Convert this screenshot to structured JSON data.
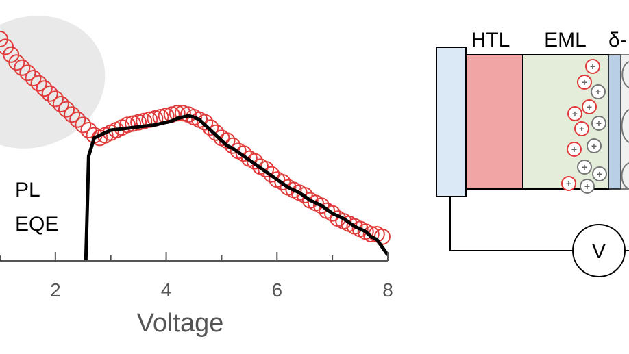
{
  "chart_data": {
    "type": "line",
    "xlabel": "Voltage",
    "ylabel": "",
    "xlim": [
      1.0,
      8.0
    ],
    "xticks": [
      2,
      4,
      6,
      8
    ],
    "ylim": [
      0,
      1
    ],
    "grid": false,
    "legend_labels": [
      "PL",
      "EQE"
    ],
    "series": [
      {
        "name": "PL",
        "marker": "open-circle",
        "color": "#e03a3a",
        "x": [
          1.0,
          1.1,
          1.2,
          1.3,
          1.4,
          1.5,
          1.6,
          1.7,
          1.8,
          1.9,
          2.0,
          2.1,
          2.2,
          2.3,
          2.4,
          2.5,
          2.6,
          2.7,
          2.8,
          2.9,
          3.0,
          3.1,
          3.2,
          3.3,
          3.4,
          3.5,
          3.6,
          3.7,
          3.8,
          3.9,
          4.0,
          4.1,
          4.2,
          4.3,
          4.4,
          4.5,
          4.6,
          4.7,
          4.8,
          4.9,
          5.0,
          5.1,
          5.2,
          5.3,
          5.4,
          5.5,
          5.6,
          5.7,
          5.8,
          5.9,
          6.0,
          6.1,
          6.2,
          6.3,
          6.4,
          6.5,
          6.6,
          6.7,
          6.8,
          6.9,
          7.0,
          7.1,
          7.2,
          7.3,
          7.4,
          7.5,
          7.6,
          7.7,
          7.8,
          7.9
        ],
        "y": [
          0.85,
          0.82,
          0.79,
          0.76,
          0.74,
          0.72,
          0.7,
          0.68,
          0.66,
          0.64,
          0.62,
          0.6,
          0.58,
          0.56,
          0.54,
          0.52,
          0.5,
          0.48,
          0.47,
          0.48,
          0.49,
          0.5,
          0.51,
          0.52,
          0.525,
          0.53,
          0.535,
          0.54,
          0.545,
          0.55,
          0.555,
          0.56,
          0.565,
          0.565,
          0.56,
          0.55,
          0.54,
          0.53,
          0.51,
          0.49,
          0.47,
          0.46,
          0.44,
          0.42,
          0.41,
          0.39,
          0.38,
          0.36,
          0.35,
          0.33,
          0.31,
          0.3,
          0.28,
          0.27,
          0.26,
          0.25,
          0.23,
          0.22,
          0.21,
          0.19,
          0.18,
          0.16,
          0.15,
          0.14,
          0.13,
          0.12,
          0.11,
          0.1,
          0.1,
          0.09
        ]
      },
      {
        "name": "EQE",
        "marker": "line",
        "color": "#000000",
        "x": [
          2.55,
          2.6,
          2.7,
          2.8,
          2.9,
          3.0,
          3.2,
          3.4,
          3.6,
          3.8,
          4.0,
          4.1,
          4.2,
          4.3,
          4.4,
          4.5,
          4.6,
          4.7,
          4.8,
          4.9,
          5.0,
          5.1,
          5.2,
          5.4,
          5.6,
          5.8,
          6.0,
          6.2,
          6.4,
          6.6,
          6.8,
          7.0,
          7.2,
          7.4,
          7.6,
          7.7,
          7.8,
          7.9,
          8.0
        ],
        "y": [
          0.0,
          0.4,
          0.47,
          0.48,
          0.49,
          0.5,
          0.505,
          0.51,
          0.515,
          0.52,
          0.53,
          0.535,
          0.545,
          0.55,
          0.555,
          0.55,
          0.54,
          0.52,
          0.5,
          0.48,
          0.46,
          0.44,
          0.43,
          0.4,
          0.37,
          0.34,
          0.31,
          0.28,
          0.26,
          0.23,
          0.21,
          0.18,
          0.16,
          0.13,
          0.11,
          0.09,
          0.08,
          0.05,
          0.02
        ]
      }
    ]
  },
  "device": {
    "layers": [
      {
        "label": "HTL",
        "color": "#f2a5a5"
      },
      {
        "label": "EML",
        "color": "#e3edda"
      },
      {
        "label": "δ-",
        "color": "#b8cfe6"
      }
    ],
    "meter_label": "V",
    "charge_symbol": "+"
  }
}
